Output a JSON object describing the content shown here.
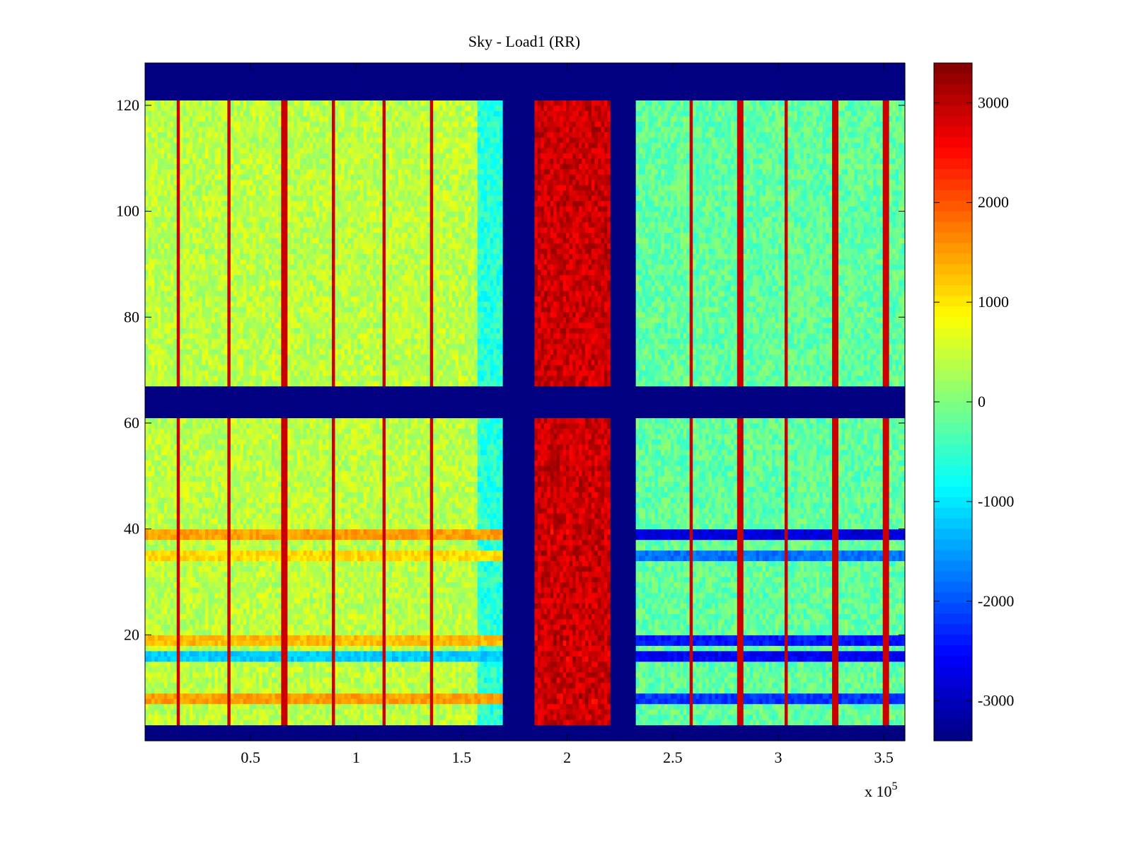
{
  "chart_data": {
    "type": "heatmap",
    "title": "Sky - Load1 (RR)",
    "xlabel": "",
    "ylabel": "",
    "x_multiplier_label": "x 10",
    "x_multiplier_exponent": "5",
    "xlim": [
      0,
      3.6
    ],
    "ylim": [
      0,
      128
    ],
    "x_ticks": [
      0.5,
      1,
      1.5,
      2,
      2.5,
      3,
      3.5
    ],
    "x_tick_labels": [
      "0.5",
      "1",
      "1.5",
      "2",
      "2.5",
      "3",
      "3.5"
    ],
    "y_ticks": [
      20,
      40,
      60,
      80,
      100,
      120
    ],
    "y_tick_labels": [
      "20",
      "40",
      "60",
      "80",
      "100",
      "120"
    ],
    "colorbar": {
      "colormap": "jet",
      "clim": [
        -3400,
        3400
      ],
      "ticks": [
        3000,
        2000,
        1000,
        0,
        -1000,
        -2000,
        -3000
      ],
      "tick_labels": [
        "3000",
        "2000",
        "1000",
        "0",
        "-1000",
        "-2000",
        "-3000"
      ]
    },
    "masked_value": -3400,
    "masked_rows": [
      [
        0,
        3
      ],
      [
        61,
        67
      ],
      [
        121,
        128
      ]
    ],
    "masked_columns": [
      [
        1.7,
        1.85
      ],
      [
        2.21,
        2.32
      ]
    ],
    "regions": [
      {
        "x_range": [
          0,
          1.58
        ],
        "typical_value": 400
      },
      {
        "x_range": [
          1.58,
          1.7
        ],
        "typical_value": -600
      },
      {
        "x_range": [
          1.85,
          2.21
        ],
        "typical_value": 2900
      },
      {
        "x_range": [
          2.32,
          3.6
        ],
        "typical_value": -200
      }
    ],
    "vertical_streaks_x": [
      0.16,
      0.4,
      0.66,
      0.89,
      1.13,
      1.36,
      2.59,
      2.82,
      3.04,
      3.27,
      3.51
    ],
    "horizontal_bands": [
      {
        "y": 39,
        "left_value": 1500,
        "right_value": -2800
      },
      {
        "y": 35,
        "left_value": 1100,
        "right_value": -1800
      },
      {
        "y": 19,
        "left_value": 1300,
        "right_value": -2400
      },
      {
        "y": 16,
        "left_value": -1200,
        "right_value": -2600
      },
      {
        "y": 8,
        "left_value": 1500,
        "right_value": -2200
      }
    ]
  }
}
